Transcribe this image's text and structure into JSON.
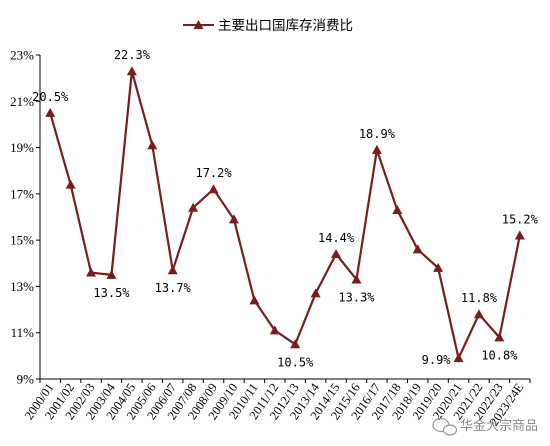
{
  "chart_data": {
    "type": "line",
    "title": "",
    "xlabel": "",
    "ylabel": "",
    "legend": {
      "position": "top-center"
    },
    "ylim": [
      9,
      23
    ],
    "yticks": [
      9,
      11,
      13,
      15,
      17,
      19,
      21,
      23
    ],
    "ytick_labels": [
      "9%",
      "11%",
      "13%",
      "15%",
      "17%",
      "19%",
      "21%",
      "23%"
    ],
    "grid": false,
    "categories": [
      "2000/01",
      "2001/02",
      "2002/03",
      "2003/04",
      "2004/05",
      "2005/06",
      "2006/07",
      "2007/08",
      "2008/09",
      "2009/10",
      "2010/11",
      "2011/12",
      "2012/13",
      "2013/14",
      "2014/15",
      "2015/16",
      "2016/17",
      "2017/18",
      "2018/19",
      "2019/20",
      "2020/21",
      "2021/22",
      "2022/23",
      "2023/24E"
    ],
    "series": [
      {
        "name": "主要出口国库存消费比",
        "color": "#7b1c1c",
        "marker": "triangle",
        "values": [
          20.5,
          17.4,
          13.6,
          13.5,
          22.3,
          19.1,
          13.7,
          16.4,
          17.2,
          15.9,
          12.4,
          11.1,
          10.5,
          12.7,
          14.4,
          13.3,
          18.9,
          16.3,
          14.6,
          13.8,
          9.9,
          11.8,
          10.8,
          15.2
        ]
      }
    ],
    "data_labels": [
      {
        "index": 0,
        "text": "20.5%",
        "pos": "above"
      },
      {
        "index": 3,
        "text": "13.5%",
        "pos": "below"
      },
      {
        "index": 4,
        "text": "22.3%",
        "pos": "above"
      },
      {
        "index": 6,
        "text": "13.7%",
        "pos": "below"
      },
      {
        "index": 8,
        "text": "17.2%",
        "pos": "above"
      },
      {
        "index": 12,
        "text": "10.5%",
        "pos": "below"
      },
      {
        "index": 14,
        "text": "14.4%",
        "pos": "above"
      },
      {
        "index": 15,
        "text": "13.3%",
        "pos": "below"
      },
      {
        "index": 16,
        "text": "18.9%",
        "pos": "above"
      },
      {
        "index": 20,
        "text": "9.9%",
        "pos": "left"
      },
      {
        "index": 21,
        "text": "11.8%",
        "pos": "above"
      },
      {
        "index": 22,
        "text": "10.8%",
        "pos": "below"
      },
      {
        "index": 23,
        "text": "15.2%",
        "pos": "above"
      }
    ]
  },
  "watermark": {
    "text": "华金大宗商品",
    "icon": "wechat-icon"
  }
}
